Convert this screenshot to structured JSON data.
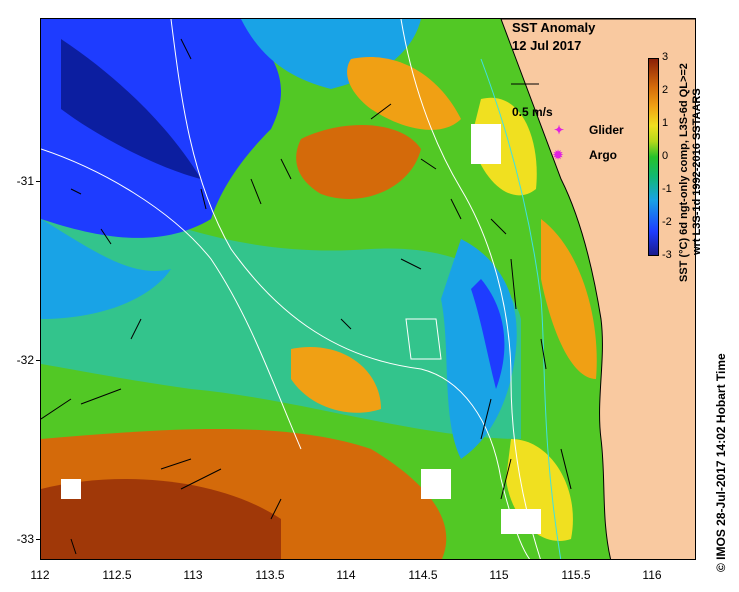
{
  "title": {
    "line1": "SST Anomaly",
    "line2": "12 Jul 2017"
  },
  "vector_scale": {
    "label": "0.5 m/s"
  },
  "legend": {
    "glider": {
      "symbol": "✦",
      "label": "Glider",
      "color": "#e020e0"
    },
    "argo": {
      "symbol": "✹",
      "label": "Argo",
      "color": "#e020e0"
    }
  },
  "colorbar": {
    "ticks": [
      "3",
      "2",
      "1",
      "0",
      "-1",
      "-2",
      "-3"
    ],
    "label1": "SST (°C) 6d ngt-only comp, L3S-6d QL>=2",
    "label2": "wrt L3S-1d 1992-2016 SSTAARS",
    "range": [
      -3,
      3
    ]
  },
  "axes": {
    "x_ticks": [
      "112",
      "112.5",
      "113",
      "113.5",
      "114",
      "114.5",
      "115",
      "115.5",
      "116"
    ],
    "y_ticks": [
      "-31",
      "-32",
      "-33"
    ]
  },
  "credit": "©  IMOS 28-Jul-2017 14:02 Hobart Time",
  "colors": {
    "land": "#f9c9a0",
    "cold": "#1e3cff",
    "warm": "#d46a0a",
    "neutral": "#27c22a"
  }
}
